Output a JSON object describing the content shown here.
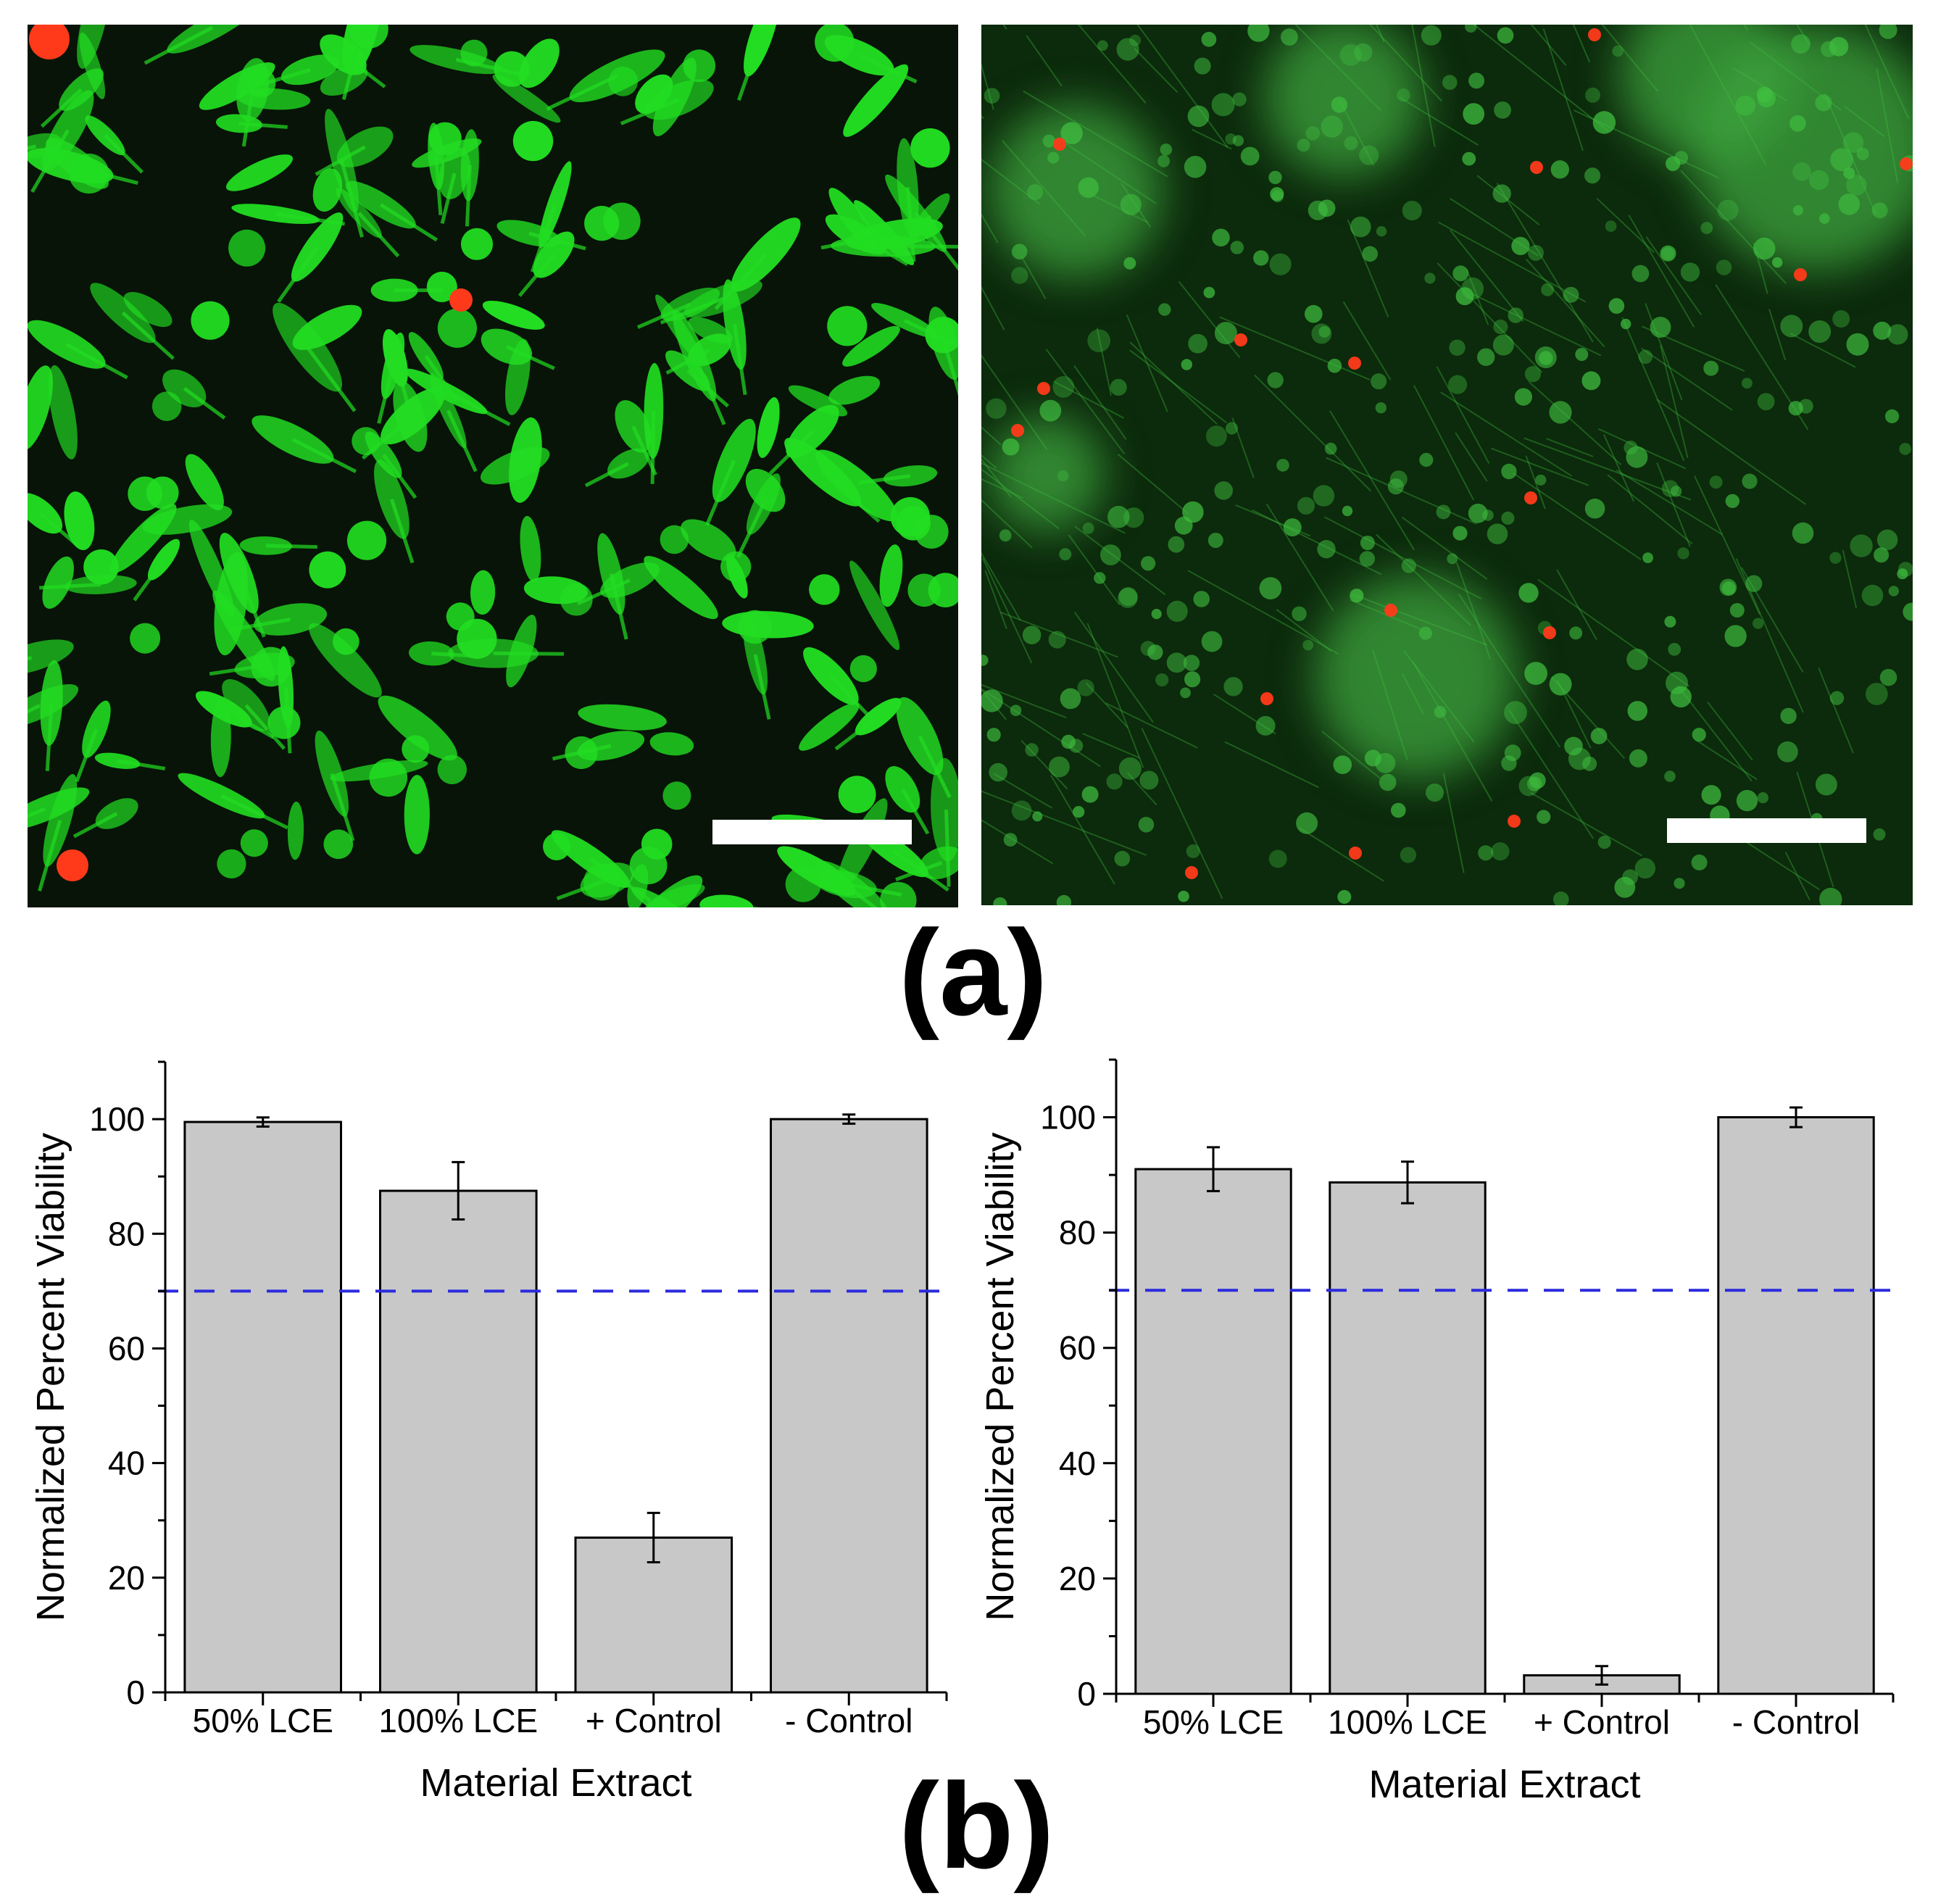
{
  "figure": {
    "panel_a_label": "(a)",
    "panel_b_label": "(b)"
  },
  "micrographs": [
    {
      "stain_live_color": "#22dd22",
      "stain_dead_color": "#ff3a1a",
      "scale_bar_color": "#ffffff"
    },
    {
      "stain_live_color": "#3fbf3f",
      "stain_dead_color": "#ff3a1a",
      "scale_bar_color": "#ffffff"
    }
  ],
  "chart_data": [
    {
      "type": "bar",
      "categories": [
        "50% LCE",
        "100% LCE",
        "+ Control",
        "- Control"
      ],
      "values": [
        99.5,
        87.5,
        27,
        100
      ],
      "errors": [
        0.8,
        5,
        4.3,
        0.8
      ],
      "xlabel": "Material Extract",
      "ylabel": "Normalized Percent Viability",
      "ylim": [
        0,
        110
      ],
      "yticks": [
        0,
        20,
        40,
        60,
        80,
        100
      ],
      "ytick_labels": [
        "0",
        "20",
        "40",
        "60",
        "80",
        "100"
      ],
      "threshold": 70,
      "bar_color": "#c8c8c8",
      "threshold_color": "#2b2bdd",
      "grid": false
    },
    {
      "type": "bar",
      "categories": [
        "50% LCE",
        "100% LCE",
        "+ Control",
        "- Control"
      ],
      "values": [
        91,
        88.7,
        3.2,
        100
      ],
      "errors": [
        3.8,
        3.6,
        1.6,
        1.7
      ],
      "xlabel": "Material Extract",
      "ylabel": "Normalized Percent Viability",
      "ylim": [
        0,
        110
      ],
      "yticks": [
        0,
        20,
        40,
        60,
        80,
        100
      ],
      "ytick_labels": [
        "0",
        "20",
        "40",
        "60",
        "80",
        "100"
      ],
      "threshold": 70,
      "bar_color": "#c8c8c8",
      "threshold_color": "#2b2bdd",
      "grid": false
    }
  ]
}
